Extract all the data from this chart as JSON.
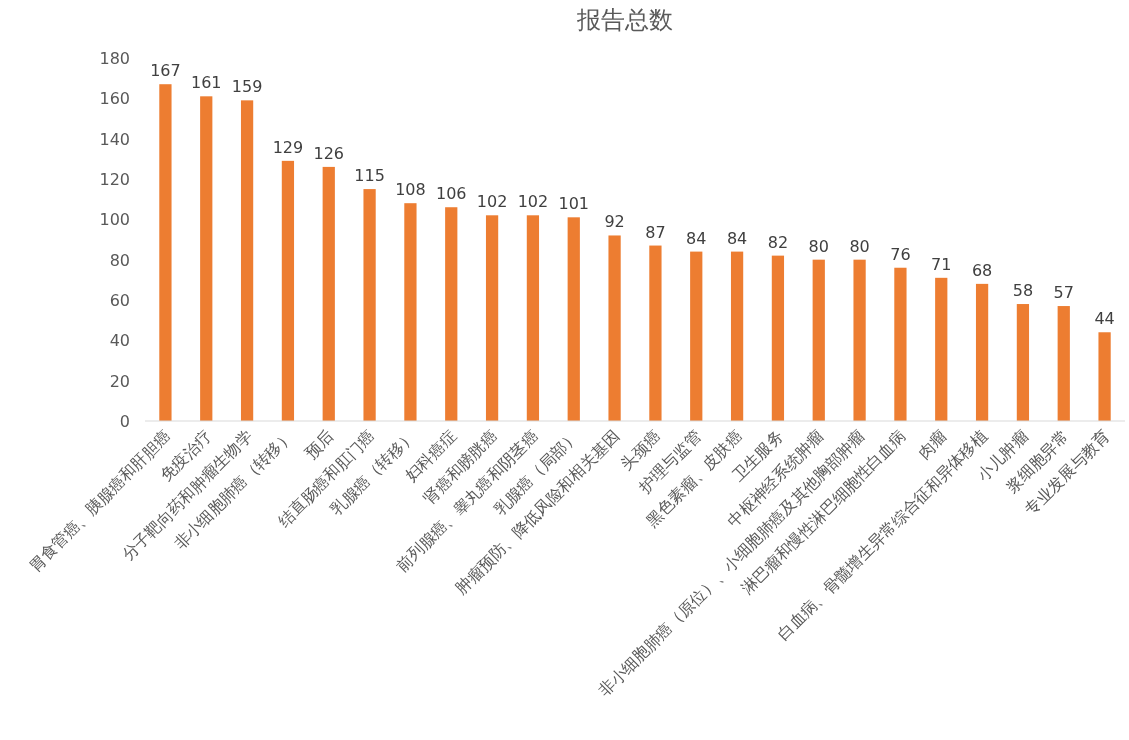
{
  "chart_data": {
    "type": "bar",
    "title": "报告总数",
    "categories": [
      "胃食管癌、胰腺癌和肝胆癌",
      "免疫治疗",
      "分子靶向药和肿瘤生物学",
      "非小细胞肺癌（转移）",
      "预后",
      "结直肠癌和肛门癌",
      "乳腺癌（转移）",
      "妇科癌症",
      "肾癌和膀胱癌",
      "前列腺癌、睾丸癌和阴茎癌",
      "乳腺癌（局部）",
      "肿瘤预防、降低风险和相关基因",
      "头颈癌",
      "护理与监管",
      "黑色素瘤、皮肤癌",
      "卫生服务",
      "中枢神经系统肿瘤",
      "非小细胞肺癌（原位）、小细胞肺癌及其他胸部肿瘤",
      "淋巴瘤和慢性淋巴细胞性白血病",
      "肉瘤",
      "白血病、骨髓增生异常综合征和异体移植",
      "小儿肿瘤",
      "浆细胞异常",
      "专业发展与教育"
    ],
    "values": [
      167,
      161,
      159,
      129,
      126,
      115,
      108,
      106,
      102,
      102,
      101,
      92,
      87,
      84,
      84,
      82,
      80,
      80,
      76,
      71,
      68,
      58,
      57,
      44
    ],
    "color": "#ed7d31",
    "ylim": [
      0,
      180
    ],
    "yticks": [
      0,
      20,
      40,
      60,
      80,
      100,
      120,
      140,
      160,
      180
    ],
    "data_labels": true,
    "grid": false
  }
}
